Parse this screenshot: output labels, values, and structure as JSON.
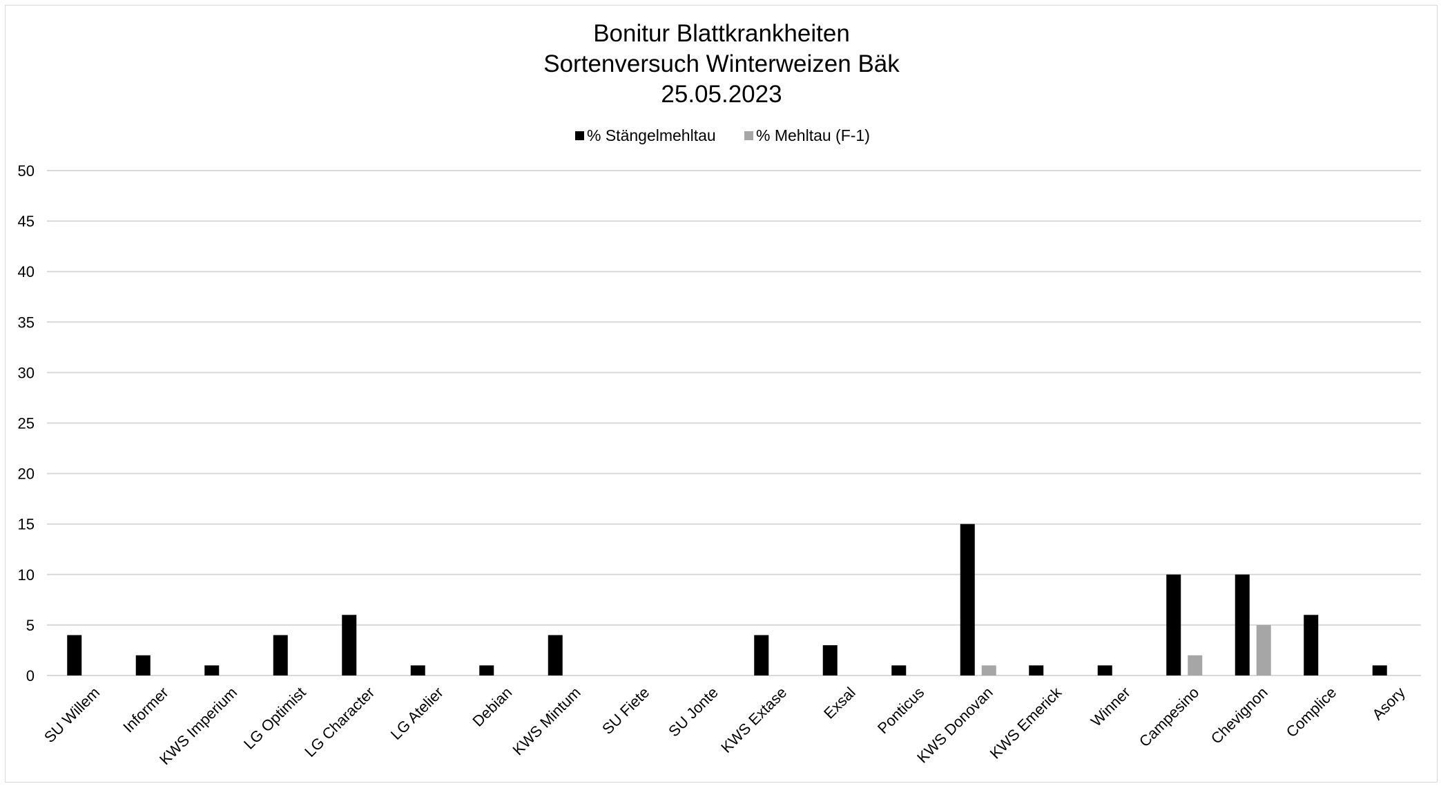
{
  "chart_data": {
    "type": "bar",
    "title_lines": [
      "Bonitur Blattkrankheiten",
      "Sortenversuch Winterweizen Bäk",
      "25.05.2023"
    ],
    "categories": [
      "SU Willem",
      "Informer",
      "KWS Imperium",
      "LG Optimist",
      "LG Character",
      "LG Atelier",
      "Debian",
      "KWS Mintum",
      "SU Fiete",
      "SU Jonte",
      "KWS Extase",
      "Exsal",
      "Ponticus",
      "KWS Donovan",
      "KWS Emerick",
      "Winner",
      "Campesino",
      "Chevignon",
      "Complice",
      "Asory"
    ],
    "series": [
      {
        "name": "% Stängelmehltau",
        "color": "#000000",
        "values": [
          4,
          2,
          1,
          4,
          6,
          1,
          1,
          4,
          0,
          0,
          4,
          3,
          1,
          15,
          1,
          1,
          10,
          10,
          6,
          1
        ]
      },
      {
        "name": "% Mehltau (F-1)",
        "color": "#a6a6a6",
        "values": [
          0,
          0,
          0,
          0,
          0,
          0,
          0,
          0,
          0,
          0,
          0,
          0,
          0,
          1,
          0,
          0,
          2,
          5,
          0,
          0
        ]
      }
    ],
    "ylim": [
      0,
      50
    ],
    "yticks": [
      0,
      5,
      10,
      15,
      20,
      25,
      30,
      35,
      40,
      45,
      50
    ],
    "grid": true,
    "legend_position": "top-center"
  }
}
